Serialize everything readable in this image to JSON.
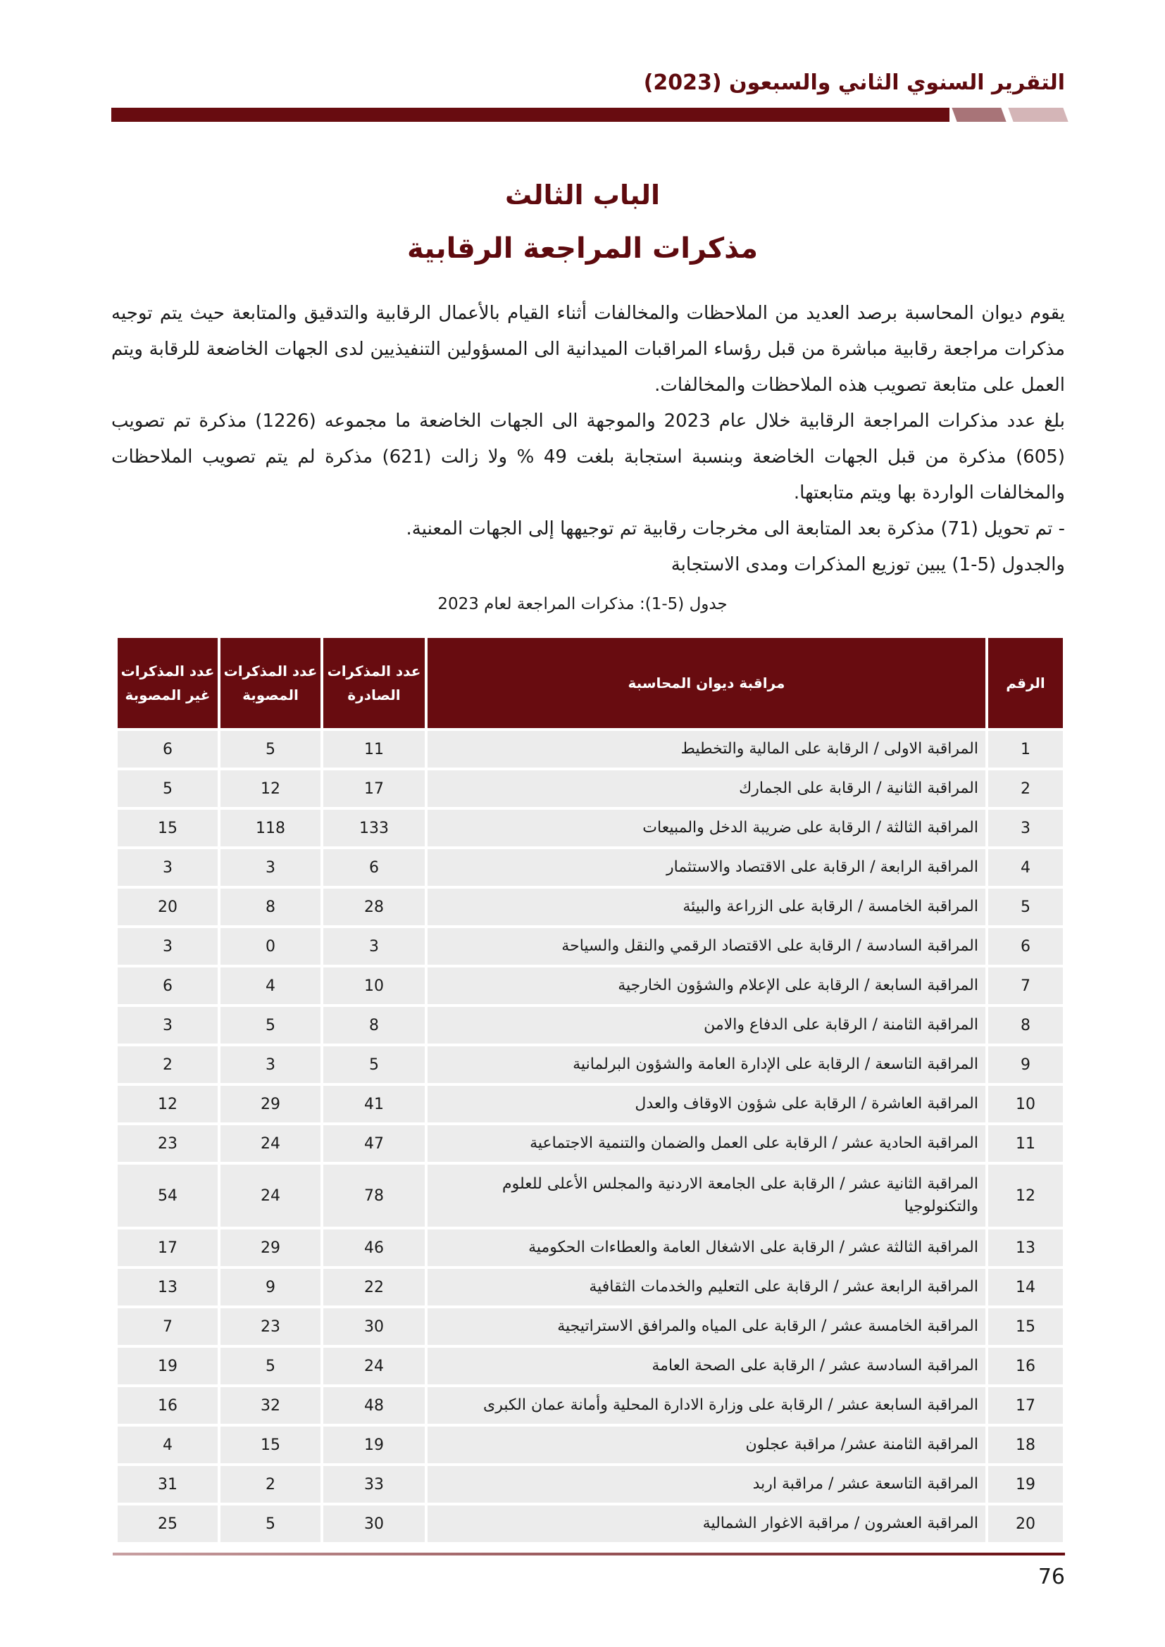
{
  "header": {
    "report_title": "التقرير السنوي الثاني والسبعون (2023)"
  },
  "chapter": {
    "number": "الباب الثالث",
    "title": "مذكرات المراجعة الرقابية"
  },
  "paragraphs": [
    "يقوم ديوان المحاسبة برصد العديد من الملاحظات والمخالفات أثناء القيام بالأعمال الرقابية والتدقيق والمتابعة حيث يتم توجيه مذكرات مراجعة رقابية مباشرة من قبل رؤساء المراقبات الميدانية الى المسؤولين التنفيذيين لدى الجهات الخاضعة للرقابة ويتم العمل على متابعة تصويب هذه الملاحظات والمخالفات.",
    "بلغ عدد مذكرات المراجعة الرقابية خلال عام 2023 والموجهة الى الجهات الخاضعة ما مجموعه (1226) مذكرة تم تصويب (605) مذكرة من قبل الجهات الخاضعة وبنسبة استجابة بلغت 49 % ولا زالت (621) مذكرة لم يتم تصويب الملاحظات والمخالفات الواردة بها ويتم متابعتها.",
    "-  تم تحويل (71) مذكرة بعد المتابعة الى مخرجات رقابية تم توجيهها إلى الجهات المعنية.",
    "والجدول (5-1) يبين توزيع المذكرات ومدى الاستجابة"
  ],
  "table": {
    "caption": "جدول (5-1): مذكرات المراجعة لعام 2023",
    "headers": [
      "الرقم",
      "مراقبة ديوان المحاسبة",
      "عدد المذكرات الصادرة",
      "عدد المذكرات المصوبة",
      "عدد المذكرات غير المصوبة"
    ],
    "rows": [
      [
        "1",
        "المراقبة الاولى / الرقابة على المالية والتخطيط",
        "11",
        "5",
        "6"
      ],
      [
        "2",
        "المراقبة الثانية / الرقابة على الجمارك",
        "17",
        "12",
        "5"
      ],
      [
        "3",
        "المراقبة الثالثة / الرقابة على ضريبة الدخل والمبيعات",
        "133",
        "118",
        "15"
      ],
      [
        "4",
        "المراقبة الرابعة / الرقابة على الاقتصاد والاستثمار",
        "6",
        "3",
        "3"
      ],
      [
        "5",
        "المراقبة الخامسة / الرقابة على الزراعة والبيئة",
        "28",
        "8",
        "20"
      ],
      [
        "6",
        "المراقبة السادسة / الرقابة على الاقتصاد الرقمي والنقل والسياحة",
        "3",
        "0",
        "3"
      ],
      [
        "7",
        "المراقبة السابعة / الرقابة على الإعلام والشؤون الخارجية",
        "10",
        "4",
        "6"
      ],
      [
        "8",
        "المراقبة الثامنة / الرقابة على الدفاع والامن",
        "8",
        "5",
        "3"
      ],
      [
        "9",
        "المراقبة التاسعة / الرقابة على الإدارة العامة والشؤون البرلمانية",
        "5",
        "3",
        "2"
      ],
      [
        "10",
        "المراقبة العاشرة / الرقابة على شؤون الاوقاف والعدل",
        "41",
        "29",
        "12"
      ],
      [
        "11",
        "المراقبة الحادية عشر / الرقابة على العمل والضمان والتنمية الاجتماعية",
        "47",
        "24",
        "23"
      ],
      [
        "12",
        "المراقبة الثانية عشر / الرقابة على الجامعة الاردنية والمجلس الأعلى للعلوم والتكنولوجيا",
        "78",
        "24",
        "54"
      ],
      [
        "13",
        "المراقبة الثالثة عشر / الرقابة على الاشغال العامة والعطاءات الحكومية",
        "46",
        "29",
        "17"
      ],
      [
        "14",
        "المراقبة الرابعة عشر / الرقابة على التعليم والخدمات الثقافية",
        "22",
        "9",
        "13"
      ],
      [
        "15",
        "المراقبة الخامسة عشر / الرقابة على المياه والمرافق الاستراتيجية",
        "30",
        "23",
        "7"
      ],
      [
        "16",
        "المراقبة السادسة عشر / الرقابة على الصحة العامة",
        "24",
        "5",
        "19"
      ],
      [
        "17",
        "المراقبة السابعة عشر / الرقابة على وزارة الادارة المحلية وأمانة عمان الكبرى",
        "48",
        "32",
        "16"
      ],
      [
        "18",
        "المراقبة الثامنة عشر/ مراقبة عجلون",
        "19",
        "15",
        "4"
      ],
      [
        "19",
        "المراقبة التاسعة عشر / مراقبة اربد",
        "33",
        "2",
        "31"
      ],
      [
        "20",
        "المراقبة العشرون / مراقبة الاغوار الشمالية",
        "30",
        "5",
        "25"
      ]
    ]
  },
  "footer": {
    "page_number": "76"
  },
  "colors": {
    "accent": "#680c10",
    "row_bg": "#ececec"
  }
}
